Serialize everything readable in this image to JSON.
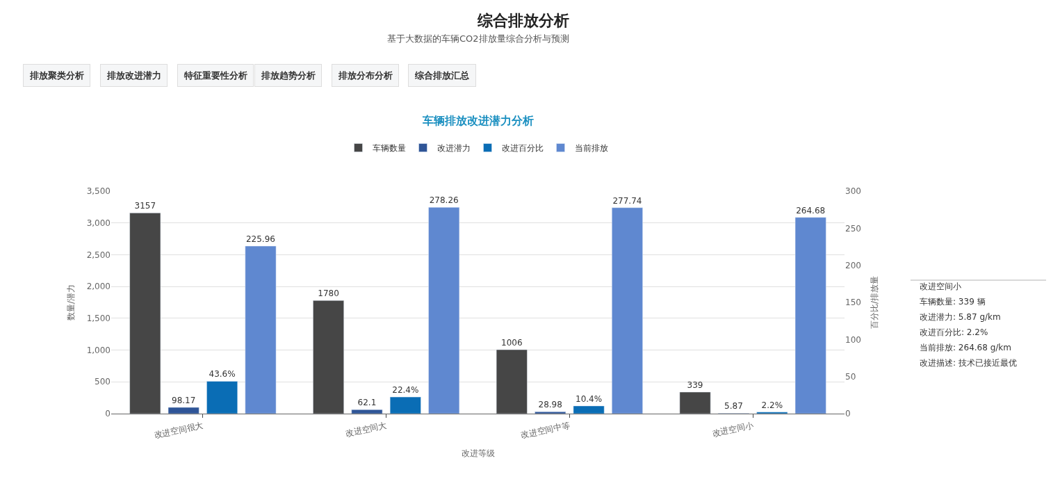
{
  "chart_data": {
    "type": "bar",
    "title": "综合排放分析",
    "subtitle": "基于大数据的车辆CO2排放量综合分析与预测",
    "annotations": [
      "排放聚类分析",
      "排放改进潜力",
      "特征重要性分析",
      "排放趋势分析",
      "排放分布分析",
      "综合排放汇总",
      "车辆排放改进潜力分析",
      "改进空间小",
      "车辆数量: 339 辆",
      "改进潜力: 5.87 g/km",
      "改进百分比: 2.2%",
      "当前排放: 264.68 g/km",
      "改进描述: 技术已接近最优"
    ],
    "categories": [
      "改进空间很大",
      "改进空间大",
      "改进空间中等",
      "改进空间小"
    ],
    "xlabel": "改进等级",
    "ylabel": "数量/潜力",
    "y2label": "百分比/排放量",
    "series": [
      {
        "name": "车辆数量",
        "color": "#464646",
        "values": [
          3157,
          1780,
          1006,
          339
        ]
      },
      {
        "name": "改进潜力",
        "color": "#2f5597",
        "values": [
          98.17,
          62.1,
          28.98,
          5.87
        ]
      },
      {
        "name": "改进百分比",
        "color": "#0a6db5",
        "axis": "y2",
        "values": [
          43.6,
          22.4,
          10.4,
          2.2
        ],
        "value_labels": [
          "43.6%",
          "22.4%",
          "10.4%",
          "2.2%"
        ]
      },
      {
        "name": "当前排放",
        "color": "#5f88d0",
        "axis": "y2",
        "values": [
          225.96,
          278.26,
          277.74,
          264.68
        ]
      }
    ],
    "ylim": [
      0,
      3500
    ],
    "yticks": [
      0,
      {
        "value": 500,
        "label": "500"
      },
      {
        "value": 1000,
        "label": "1,000"
      },
      {
        "value": 1500,
        "label": "1,500"
      },
      {
        "value": 2000,
        "label": "2,000"
      },
      {
        "value": 2500,
        "label": "2,500"
      },
      {
        "value": 3000,
        "label": "3,000"
      },
      {
        "value": 3500,
        "label": "3,500"
      }
    ],
    "y2lim": [
      0,
      300
    ],
    "y2ticks": [
      0,
      50,
      100,
      150,
      200,
      250,
      300
    ],
    "data_labels": true,
    "grid": "y",
    "legend": "top"
  }
}
